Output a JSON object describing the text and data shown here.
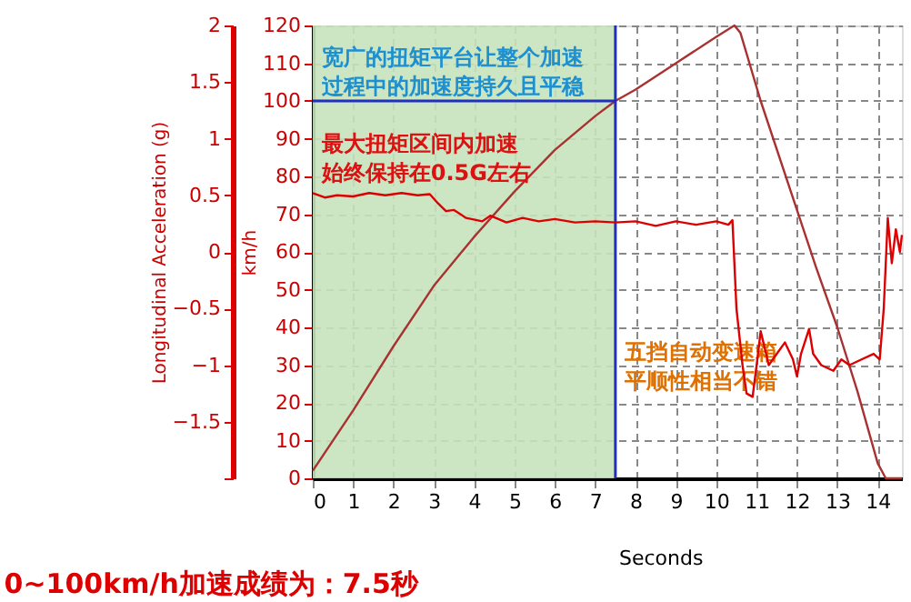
{
  "chart_data": {
    "type": "line",
    "title": "0~100km/h加速成绩为：7.5秒",
    "xlabel": "Seconds",
    "ylabel": "km/h",
    "y2label": "Longitudinal Acceleration (g)",
    "annotations": [
      "宽广的扭矩平台让整个加速过程中的加速度持久且平稳",
      "最大扭矩区间内加速始终保持在0.5G左右",
      "五挡自动变速箱平顺性相当不错"
    ],
    "xlim": [
      0,
      14.6
    ],
    "xticks": [
      0,
      1,
      2,
      3,
      4,
      5,
      6,
      7,
      8,
      9,
      10,
      11,
      12,
      13,
      14
    ],
    "ylim": [
      0,
      120
    ],
    "yticks": [
      0,
      10,
      20,
      30,
      40,
      50,
      60,
      70,
      80,
      90,
      100,
      110,
      120
    ],
    "y2lim": [
      -2,
      2
    ],
    "y2ticks": [
      {
        "value": -2,
        "label": null
      },
      -1.5,
      -1,
      -0.5,
      0,
      0.5,
      1,
      1.5,
      2
    ],
    "grid": true,
    "legend": false,
    "line_style": "solid",
    "marker": "none",
    "bands": [
      {
        "axis": "x",
        "from": 0,
        "to": 7.5,
        "color": "#c6e3bd"
      }
    ],
    "ref_lines": [
      {
        "axis": "x",
        "value": 7.5,
        "color": "#1f2fbf"
      },
      {
        "axis": "y",
        "value": 100,
        "color": "#1f2fbf"
      }
    ],
    "series": [
      {
        "color": "#a83232",
        "x": [
          0,
          1,
          2,
          3,
          4,
          5,
          6,
          7,
          7.5,
          8,
          9,
          10,
          10.45,
          10.6,
          11.1,
          12.47,
          13,
          13.5,
          14.0,
          14.2,
          14.6
        ],
        "values": [
          2,
          18,
          35,
          51,
          64,
          76,
          87,
          96,
          100,
          103,
          110,
          117,
          120,
          118,
          100,
          56,
          40,
          23,
          4,
          0,
          0
        ]
      },
      {
        "axis": "y2",
        "color": "#dd0000",
        "x": [
          0,
          0.3,
          0.6,
          1,
          1.4,
          1.8,
          2.2,
          2.6,
          2.9,
          3.1,
          3.3,
          3.5,
          3.8,
          4.2,
          4.4,
          4.8,
          5.2,
          5.6,
          6,
          6.5,
          7,
          7.5,
          8,
          8.5,
          9,
          9.5,
          10,
          10.3,
          10.4,
          10.5,
          10.65,
          10.75,
          10.9,
          11.0,
          11.1,
          11.3,
          11.5,
          11.7,
          11.9,
          12.0,
          12.1,
          12.3,
          12.4,
          12.6,
          12.9,
          13.1,
          13.3,
          13.6,
          13.9,
          14.05,
          14.15,
          14.25,
          14.35,
          14.45,
          14.55,
          14.6
        ],
        "values": [
          0.52,
          0.48,
          0.5,
          0.49,
          0.52,
          0.5,
          0.52,
          0.5,
          0.51,
          0.43,
          0.36,
          0.37,
          0.3,
          0.27,
          0.32,
          0.26,
          0.3,
          0.27,
          0.29,
          0.26,
          0.27,
          0.26,
          0.27,
          0.23,
          0.27,
          0.24,
          0.27,
          0.24,
          0.28,
          -0.5,
          -1.0,
          -1.25,
          -1.28,
          -1.0,
          -0.7,
          -1.0,
          -0.9,
          -0.8,
          -0.95,
          -1.1,
          -0.9,
          -0.68,
          -0.9,
          -1.0,
          -1.05,
          -0.95,
          -1.0,
          -0.95,
          -0.9,
          -0.95,
          -0.5,
          0.3,
          -0.1,
          0.2,
          0.0,
          0.15
        ]
      }
    ]
  }
}
